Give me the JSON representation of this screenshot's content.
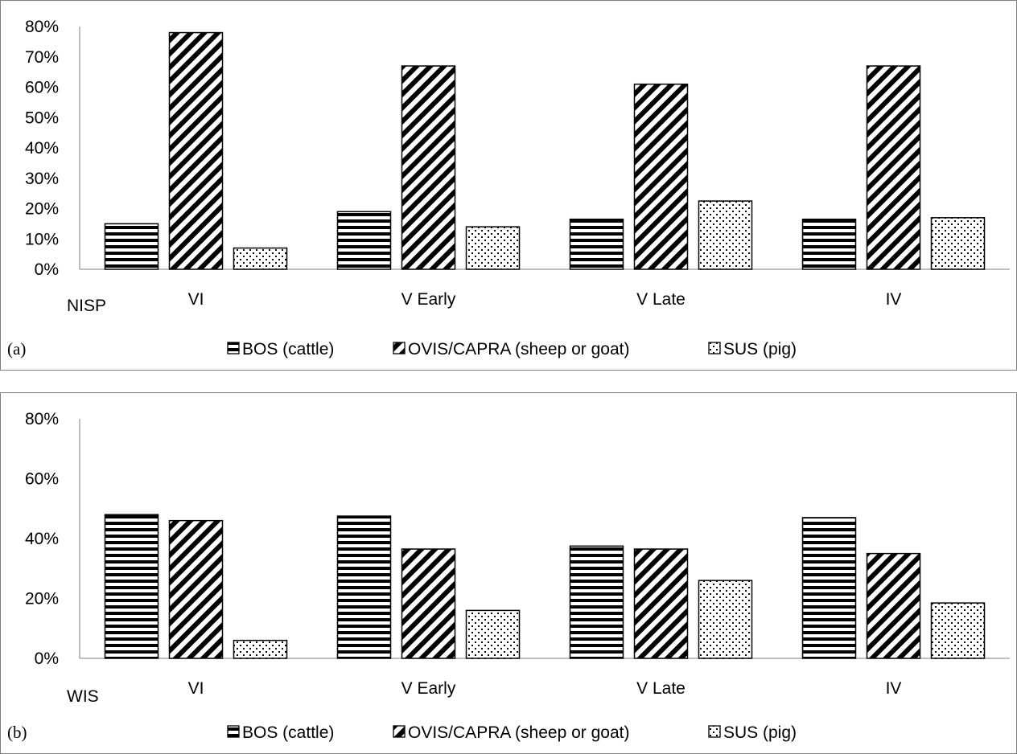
{
  "chart_data": [
    {
      "type": "bar",
      "panel_label": "(a)",
      "corner_label": "NISP",
      "categories": [
        "VI",
        "V Early",
        "V Late",
        "IV"
      ],
      "series": [
        {
          "name": "BOS (cattle)",
          "pattern": "horizontal-stripes",
          "values": [
            0.15,
            0.19,
            0.165,
            0.165
          ]
        },
        {
          "name": "OVIS/CAPRA (sheep or goat)",
          "pattern": "diagonal-stripes",
          "values": [
            0.78,
            0.67,
            0.61,
            0.67
          ]
        },
        {
          "name": "SUS (pig)",
          "pattern": "dots",
          "values": [
            0.07,
            0.14,
            0.225,
            0.17
          ]
        }
      ],
      "ylim": [
        0,
        0.8
      ],
      "yticks": [
        "0%",
        "10%",
        "20%",
        "30%",
        "40%",
        "50%",
        "60%",
        "70%",
        "80%"
      ],
      "grid": false,
      "legend_position": "bottom"
    },
    {
      "type": "bar",
      "panel_label": "(b)",
      "corner_label": "WIS",
      "categories": [
        "VI",
        "V Early",
        "V Late",
        "IV"
      ],
      "series": [
        {
          "name": "BOS (cattle)",
          "pattern": "horizontal-stripes",
          "values": [
            0.48,
            0.475,
            0.375,
            0.47
          ]
        },
        {
          "name": "OVIS/CAPRA (sheep or goat)",
          "pattern": "diagonal-stripes",
          "values": [
            0.46,
            0.365,
            0.365,
            0.35
          ]
        },
        {
          "name": "SUS (pig)",
          "pattern": "dots",
          "values": [
            0.06,
            0.16,
            0.26,
            0.185
          ]
        }
      ],
      "ylim": [
        0,
        0.8
      ],
      "yticks": [
        "0%",
        "20%",
        "40%",
        "60%",
        "80%"
      ],
      "grid": false,
      "legend_position": "bottom"
    }
  ]
}
